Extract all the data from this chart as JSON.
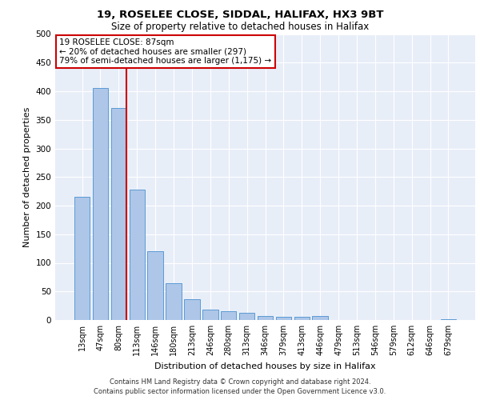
{
  "title1": "19, ROSELEE CLOSE, SIDDAL, HALIFAX, HX3 9BT",
  "title2": "Size of property relative to detached houses in Halifax",
  "xlabel": "Distribution of detached houses by size in Halifax",
  "ylabel": "Number of detached properties",
  "categories": [
    "13sqm",
    "47sqm",
    "80sqm",
    "113sqm",
    "146sqm",
    "180sqm",
    "213sqm",
    "246sqm",
    "280sqm",
    "313sqm",
    "346sqm",
    "379sqm",
    "413sqm",
    "446sqm",
    "479sqm",
    "513sqm",
    "546sqm",
    "579sqm",
    "612sqm",
    "646sqm",
    "679sqm"
  ],
  "values": [
    215,
    405,
    370,
    228,
    120,
    65,
    37,
    18,
    15,
    13,
    7,
    5,
    5,
    7,
    0,
    0,
    0,
    0,
    0,
    0,
    2
  ],
  "bar_color": "#aec6e8",
  "bar_edge_color": "#5b9bd5",
  "red_line_index": 2,
  "annotation_title": "19 ROSELEE CLOSE: 87sqm",
  "annotation_line1": "← 20% of detached houses are smaller (297)",
  "annotation_line2": "79% of semi-detached houses are larger (1,175) →",
  "annotation_box_color": "#ffffff",
  "annotation_box_edge": "#cc0000",
  "vline_color": "#cc0000",
  "background_color": "#e8eef8",
  "ylim": [
    0,
    500
  ],
  "yticks": [
    0,
    50,
    100,
    150,
    200,
    250,
    300,
    350,
    400,
    450,
    500
  ],
  "footnote1": "Contains HM Land Registry data © Crown copyright and database right 2024.",
  "footnote2": "Contains public sector information licensed under the Open Government Licence v3.0."
}
